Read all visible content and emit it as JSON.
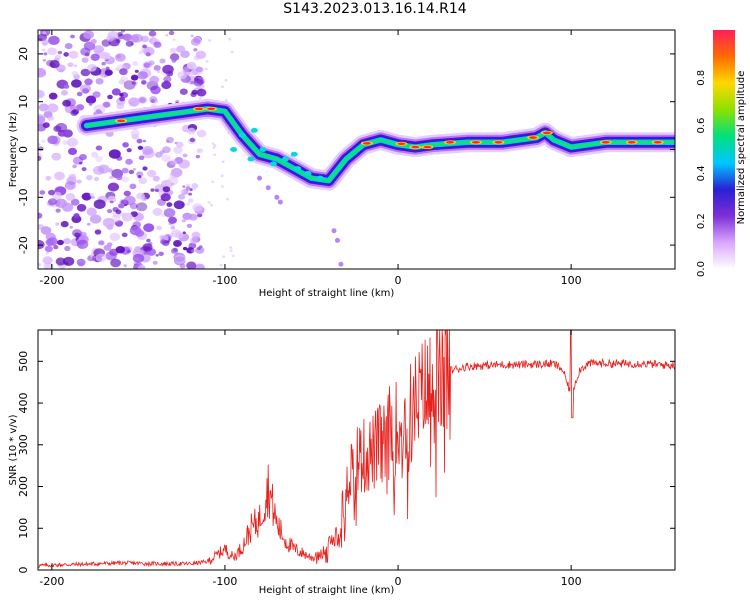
{
  "figure": {
    "title": "S143.2023.013.16.14.R14"
  },
  "chart_data": [
    {
      "type": "heatmap",
      "xlabel": "Height of straight line (km)",
      "ylabel": "Frequency (Hz)",
      "xlim": [
        -208,
        160
      ],
      "ylim": [
        -25,
        25
      ],
      "xticks": [
        -200,
        -100,
        0,
        100
      ],
      "yticks": [
        -20,
        -10,
        0,
        10,
        20
      ],
      "colorbar": {
        "label": "Normalized spectral amplitude",
        "range": [
          0.0,
          1.0
        ],
        "ticks": [
          "0.0",
          "0.2",
          "0.4",
          "0.6",
          "0.8"
        ],
        "colors": [
          "#ffffff",
          "#d9a6ff",
          "#7d2fd6",
          "#2a20d4",
          "#00c8ff",
          "#00e07a",
          "#8ee000",
          "#ffd800",
          "#ff6a00",
          "#ff1f5a"
        ]
      },
      "ridge": {
        "x": [
          -180,
          -160,
          -140,
          -120,
          -110,
          -100,
          -90,
          -80,
          -70,
          -60,
          -50,
          -40,
          -30,
          -20,
          -10,
          0,
          10,
          20,
          40,
          60,
          80,
          85,
          90,
          100,
          120,
          140,
          160
        ],
        "y": [
          5,
          6,
          7,
          8,
          8.5,
          8,
          3,
          -1,
          -2,
          -4,
          -6,
          -6.5,
          -2,
          1,
          2,
          1,
          0.5,
          1,
          1.5,
          1.5,
          2.5,
          3.5,
          2,
          0.5,
          1.5,
          1.5,
          1.5
        ]
      }
    },
    {
      "type": "line",
      "xlabel": "Height of straight line (km)",
      "ylabel": "SNR (10 * v/v)",
      "xlim": [
        -208,
        160
      ],
      "ylim": [
        0,
        575
      ],
      "xticks": [
        -200,
        -100,
        0,
        100
      ],
      "yticks": [
        0,
        100,
        200,
        300,
        400,
        500
      ],
      "color": "#e8201c",
      "series": [
        {
          "x": [
            -208,
            -200,
            -180,
            -160,
            -140,
            -120,
            -110,
            -105,
            -100,
            -95,
            -90,
            -85,
            -80,
            -75,
            -70,
            -65,
            -60,
            -55,
            -50,
            -45,
            -40,
            -35,
            -30,
            -25,
            -20,
            -15,
            -10,
            -5,
            0,
            5,
            10,
            15,
            20,
            25,
            30,
            40,
            50,
            60,
            70,
            80,
            90,
            95,
            100,
            105,
            110,
            120,
            130,
            140,
            150,
            160
          ],
          "y": [
            10,
            12,
            14,
            17,
            15,
            15,
            20,
            35,
            50,
            30,
            55,
            100,
            120,
            200,
            110,
            70,
            50,
            40,
            30,
            35,
            60,
            90,
            220,
            260,
            270,
            280,
            300,
            330,
            340,
            360,
            390,
            420,
            440,
            465,
            478,
            488,
            490,
            492,
            492,
            493,
            494,
            480,
            420,
            480,
            495,
            495,
            494,
            495,
            492,
            490
          ]
        }
      ]
    }
  ]
}
